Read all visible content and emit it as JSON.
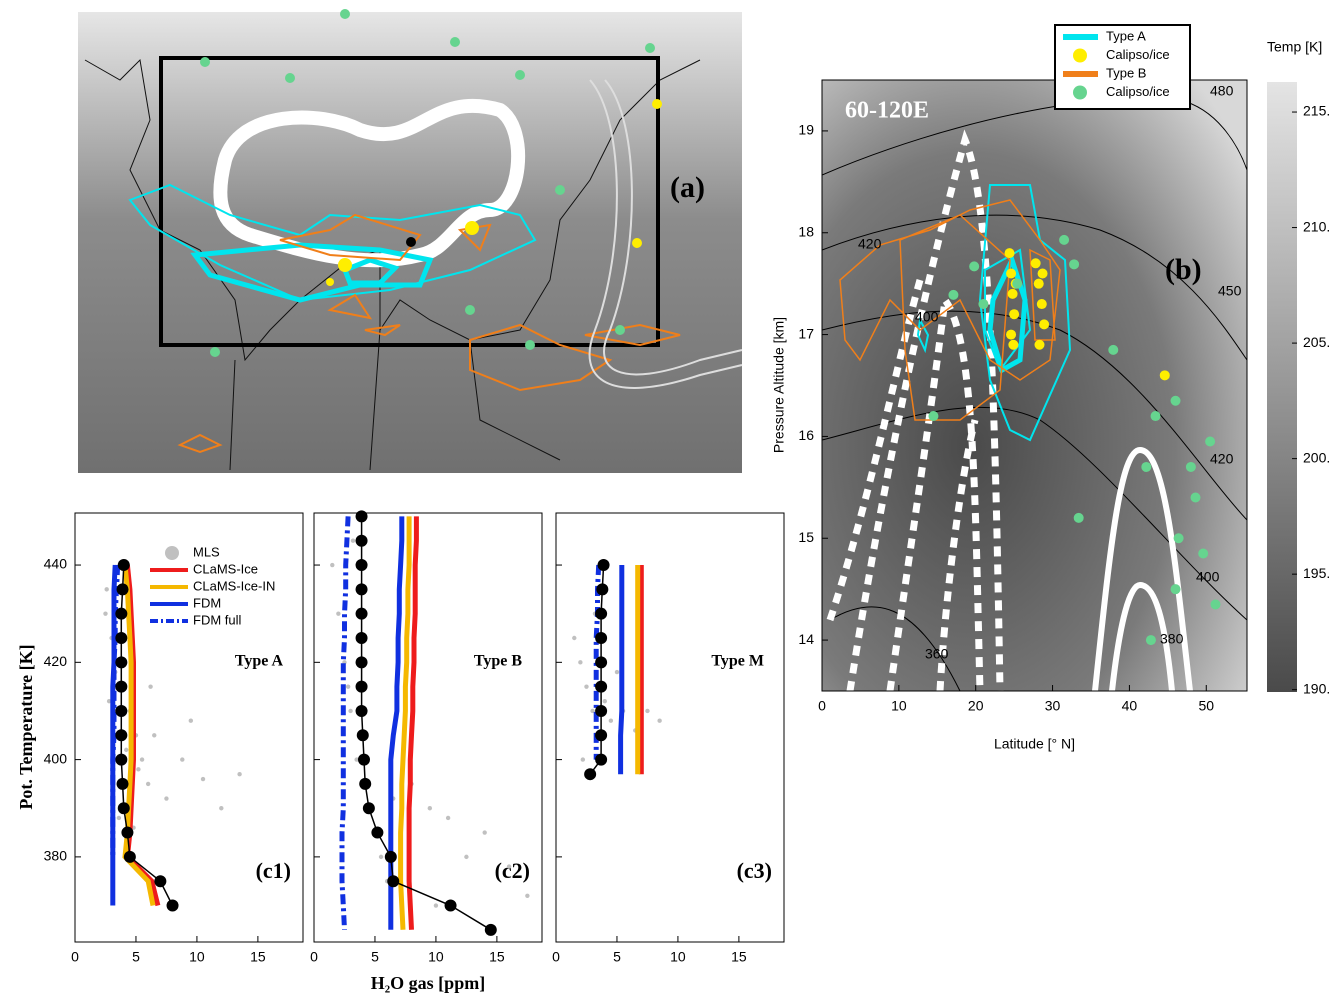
{
  "chart_data": [
    {
      "type": "map",
      "label": "(a)"
    },
    {
      "type": "scatter",
      "annotations": [
        "60-120E",
        "(b)",
        "480",
        "450",
        "420",
        "420",
        "400",
        "400",
        "380",
        "360"
      ],
      "x_label": "Latitude [° N]",
      "y_label": "Pressure Altitude [km]",
      "xlim": [
        0,
        55.3
      ],
      "xticks": [
        0,
        10,
        20,
        30,
        40,
        50
      ],
      "ylim": [
        13.5,
        19.5
      ],
      "yticks": [
        14,
        15,
        16,
        17,
        18,
        19
      ],
      "series": [
        {
          "name": "Type A",
          "color": "#00e5ee"
        },
        {
          "name": "Calipso/ice",
          "color": "#ffee00",
          "x": [
            24.4,
            24.6,
            24.8,
            25.0,
            24.6,
            24.9,
            25.2,
            27.8,
            28.2,
            28.6,
            28.9,
            28.3,
            28.7,
            44.6
          ],
          "y": [
            17.8,
            17.6,
            17.4,
            17.2,
            17.0,
            16.9,
            17.5,
            17.7,
            17.5,
            17.3,
            17.1,
            16.9,
            17.6,
            16.6
          ]
        },
        {
          "name": "Type B",
          "color": "#f07f1a"
        },
        {
          "name": "Calipso/ice",
          "color": "#66d48f",
          "x": [
            19.8,
            17.1,
            14.5,
            31.5,
            32.8,
            37.9,
            46.0,
            50.5,
            48.0,
            42.2,
            46.4,
            49.6,
            51.2,
            46.0,
            33.4,
            42.8,
            48.6,
            43.4,
            21.0,
            25.4
          ],
          "y": [
            17.67,
            17.39,
            16.2,
            17.93,
            17.69,
            16.85,
            16.35,
            15.95,
            15.7,
            15.7,
            15.0,
            14.85,
            14.35,
            14.5,
            15.2,
            14.0,
            15.4,
            16.2,
            17.3,
            17.5
          ]
        }
      ],
      "colorbar": {
        "label": "Temp [K]",
        "lim": [
          189.9,
          216.3
        ],
        "ticks": [
          {
            "value": 215,
            "label": "215."
          },
          {
            "value": 210,
            "label": "210."
          },
          {
            "value": 205,
            "label": "205."
          },
          {
            "value": 200,
            "label": "200."
          },
          {
            "value": 195,
            "label": "195."
          },
          {
            "value": 190,
            "label": "190."
          }
        ]
      }
    },
    {
      "type": "line",
      "label": "(c1)",
      "title": "Type A",
      "y_label": "Pot. Temperature [K]",
      "xlim": [
        0,
        18.7
      ],
      "xticks": [
        0,
        5,
        10,
        15
      ],
      "ylim": [
        362.5,
        450.7
      ],
      "yticks": [
        380,
        400,
        420,
        440
      ],
      "y": [
        440,
        435,
        430,
        425,
        420,
        415,
        410,
        405,
        400,
        395,
        390,
        385,
        380,
        375,
        370
      ],
      "series": [
        {
          "name": "MLS",
          "color": "#c0c0c0",
          "x": [
            2.5,
            3,
            3.5,
            4,
            4.5,
            5,
            5.5,
            6,
            2.8,
            3.3,
            4.2,
            5.2,
            6.5,
            7.5,
            8.8,
            10.5,
            12,
            13.5,
            3.6,
            4.8,
            2.6,
            6.2,
            9.5
          ],
          "yv": [
            430,
            425,
            420,
            415,
            410,
            405,
            400,
            395,
            412,
            418,
            402,
            398,
            405,
            392,
            400,
            396,
            390,
            397,
            388,
            386,
            435,
            415,
            408
          ]
        },
        {
          "name": "CLaMS-Ice",
          "color": "#ee1c1c",
          "values": [
            4.3,
            4.5,
            4.6,
            4.7,
            4.8,
            4.8,
            4.8,
            4.8,
            4.8,
            4.7,
            4.6,
            4.5,
            4.3,
            6.3,
            6.8
          ]
        },
        {
          "name": "CLaMS-Ice-IN",
          "color": "#f5b800",
          "values": [
            4.1,
            4.3,
            4.4,
            4.5,
            4.6,
            4.6,
            4.6,
            4.6,
            4.6,
            4.5,
            4.4,
            4.3,
            4.1,
            6.0,
            6.4
          ]
        },
        {
          "name": "FDM",
          "color": "#1030e0",
          "values": [
            3.3,
            3.2,
            3.2,
            3.2,
            3.2,
            3.1,
            3.1,
            3.1,
            3.1,
            3.1,
            3.1,
            3.1,
            3.1,
            3.1,
            3.1
          ]
        },
        {
          "name": "FDM full",
          "color": "#1030e0",
          "dash": "dashdot",
          "values": [
            3.5,
            3.4,
            3.3,
            3.3,
            3.2,
            3.2,
            3.2,
            3.2,
            3.1,
            3.1,
            3.1,
            3.1,
            3.1,
            null,
            null
          ]
        },
        {
          "color": "#000000",
          "dots": true,
          "values": [
            4.0,
            3.9,
            3.8,
            3.8,
            3.8,
            3.8,
            3.8,
            3.8,
            3.8,
            3.9,
            4.0,
            4.3,
            4.5,
            7.0,
            8.0
          ]
        }
      ]
    },
    {
      "type": "line",
      "label": "(c2)",
      "title": "Type B",
      "x_label": "H₂O gas [ppm]",
      "xlim": [
        0,
        18.7
      ],
      "xticks": [
        0,
        5,
        10,
        15
      ],
      "ylim": [
        362.5,
        450.7
      ],
      "yticks": [
        380,
        400,
        420,
        440
      ],
      "y": [
        450,
        445,
        440,
        435,
        430,
        425,
        420,
        415,
        410,
        405,
        400,
        395,
        390,
        385,
        380,
        375,
        370,
        365
      ],
      "series": [
        {
          "color": "#c0c0c0",
          "x": [
            1.5,
            2,
            2.5,
            3,
            3.5,
            4,
            4.5,
            5,
            5.5,
            6,
            3.2,
            3.8,
            4.2,
            8,
            9.5,
            11,
            12.5,
            14,
            16,
            17.5,
            2.8,
            6.5,
            10
          ],
          "yv": [
            440,
            430,
            420,
            410,
            400,
            395,
            390,
            385,
            380,
            375,
            445,
            425,
            405,
            395,
            390,
            388,
            380,
            385,
            378,
            372,
            415,
            392,
            370
          ]
        },
        {
          "color": "#ee1c1c",
          "values": [
            8.4,
            8.4,
            8.3,
            8.3,
            8.3,
            8.2,
            8.2,
            8.1,
            8.1,
            8.0,
            7.9,
            7.9,
            7.8,
            7.8,
            7.8,
            7.8,
            7.9,
            8.0
          ]
        },
        {
          "color": "#f5b800",
          "values": [
            7.8,
            7.8,
            7.8,
            7.7,
            7.7,
            7.6,
            7.6,
            7.5,
            7.5,
            7.4,
            7.3,
            7.2,
            7.2,
            7.1,
            7.1,
            7.1,
            7.2,
            7.3
          ]
        },
        {
          "color": "#1030e0",
          "values": [
            7.2,
            7.2,
            7.1,
            7.0,
            7.0,
            6.9,
            6.9,
            6.8,
            6.8,
            6.5,
            6.3,
            6.3,
            6.3,
            6.3,
            6.3,
            6.3,
            6.3,
            6.3
          ]
        },
        {
          "color": "#1030e0",
          "dash": "dashdot",
          "values": [
            2.8,
            2.7,
            2.6,
            2.6,
            2.5,
            2.5,
            2.4,
            2.4,
            2.4,
            2.4,
            2.4,
            2.4,
            2.4,
            2.3,
            2.3,
            2.3,
            2.4,
            2.5
          ]
        },
        {
          "color": "#000000",
          "dots": true,
          "values": [
            3.9,
            3.9,
            3.9,
            3.9,
            3.9,
            3.9,
            3.9,
            3.9,
            3.9,
            4.0,
            4.1,
            4.2,
            4.5,
            5.2,
            6.3,
            6.5,
            11.2,
            14.5
          ]
        }
      ]
    },
    {
      "type": "line",
      "label": "(c3)",
      "title": "Type M",
      "xlim": [
        0,
        18.7
      ],
      "xticks": [
        0,
        5,
        10,
        15
      ],
      "ylim": [
        362.5,
        450.7
      ],
      "yticks": [
        380,
        400,
        420,
        440
      ],
      "y": [
        440,
        435,
        430,
        425,
        420,
        415,
        410,
        405,
        400,
        397
      ],
      "series": [
        {
          "color": "#c0c0c0",
          "x": [
            1.5,
            2,
            2.5,
            3,
            3.5,
            4,
            4.5,
            5,
            5.5,
            6.5,
            7.5,
            8.5,
            2.2,
            3.2
          ],
          "yv": [
            425,
            420,
            415,
            410,
            405,
            412,
            408,
            418,
            410,
            406,
            410,
            408,
            400,
            430
          ]
        },
        {
          "color": "#ee1c1c",
          "values": [
            7.0,
            7.0,
            7.0,
            7.0,
            7.0,
            7.0,
            7.0,
            7.0,
            7.0,
            7.0
          ]
        },
        {
          "color": "#f5b800",
          "values": [
            6.7,
            6.7,
            6.7,
            6.7,
            6.7,
            6.7,
            6.7,
            6.7,
            6.7,
            6.7
          ]
        },
        {
          "color": "#1030e0",
          "values": [
            5.4,
            5.4,
            5.4,
            5.4,
            5.4,
            5.4,
            5.4,
            5.3,
            5.3,
            5.3
          ]
        },
        {
          "color": "#1030e0",
          "dash": "dashdot",
          "values": [
            3.5,
            3.4,
            3.4,
            3.3,
            3.3,
            3.3,
            3.3,
            3.3,
            3.3,
            null
          ]
        },
        {
          "color": "#000000",
          "dots": true,
          "values": [
            3.9,
            3.8,
            3.7,
            3.7,
            3.7,
            3.7,
            3.7,
            3.7,
            3.7,
            2.8
          ]
        }
      ]
    }
  ]
}
